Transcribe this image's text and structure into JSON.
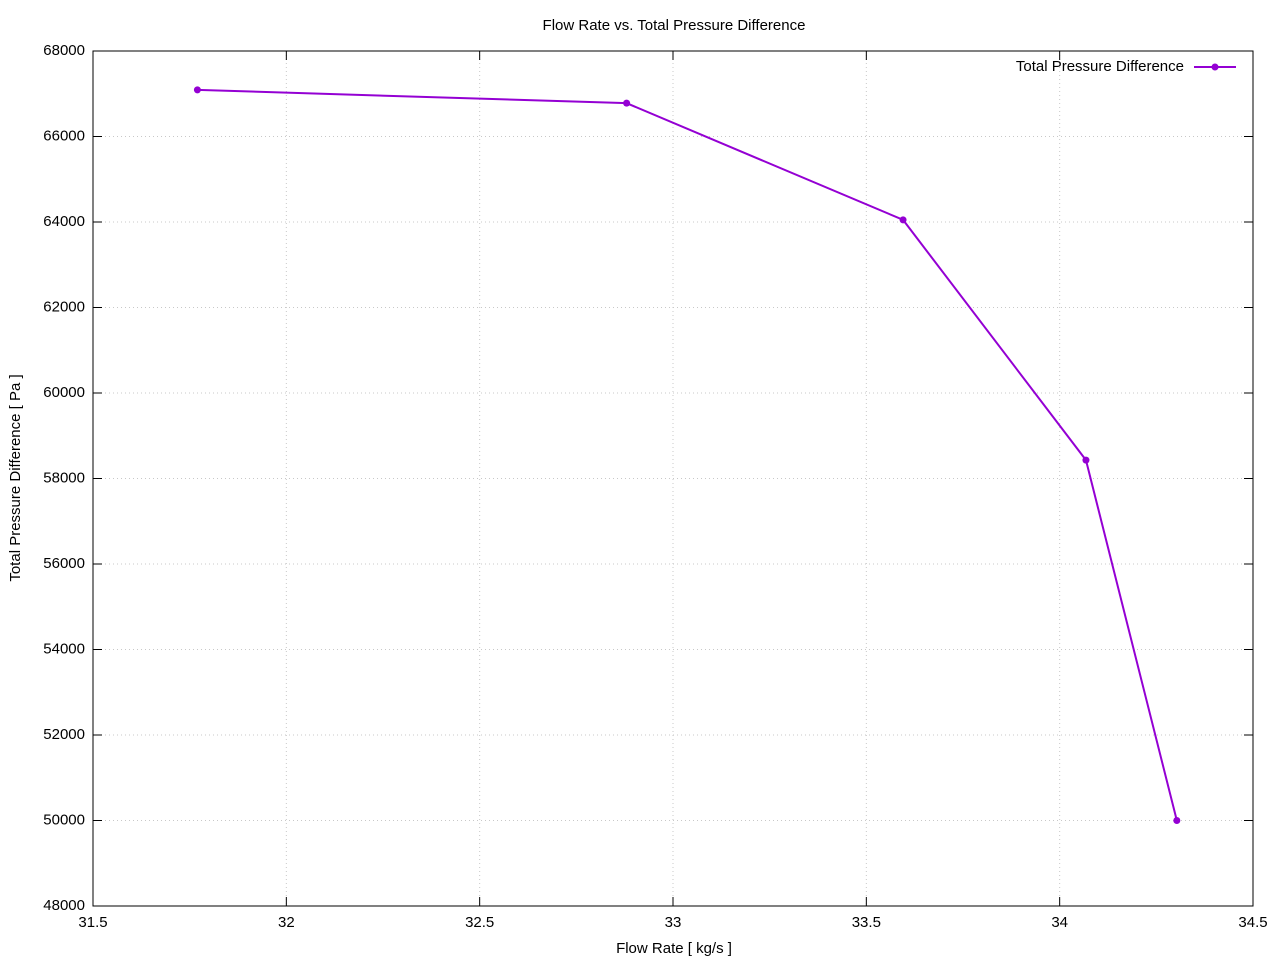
{
  "chart_data": {
    "type": "line",
    "title": "Flow Rate vs. Total Pressure Difference",
    "x_label": "Flow Rate [ kg/s ]",
    "y_label": "Total Pressure Difference [ Pa ]",
    "x": [
      31.77,
      32.88,
      33.595,
      34.068,
      34.303
    ],
    "series": [
      {
        "name": "Total Pressure Difference",
        "color": "#9400d3",
        "values": [
          67090,
          66780,
          64050,
          58430,
          50000
        ]
      }
    ],
    "xlim": [
      31.5,
      34.5
    ],
    "xticks": [
      31.5,
      32,
      32.5,
      33,
      33.5,
      34,
      34.5
    ],
    "ylim": [
      48000,
      68000
    ],
    "yticks": [
      48000,
      50000,
      52000,
      54000,
      56000,
      58000,
      60000,
      62000,
      64000,
      66000,
      68000
    ],
    "grid": true,
    "legend": "top-right"
  }
}
